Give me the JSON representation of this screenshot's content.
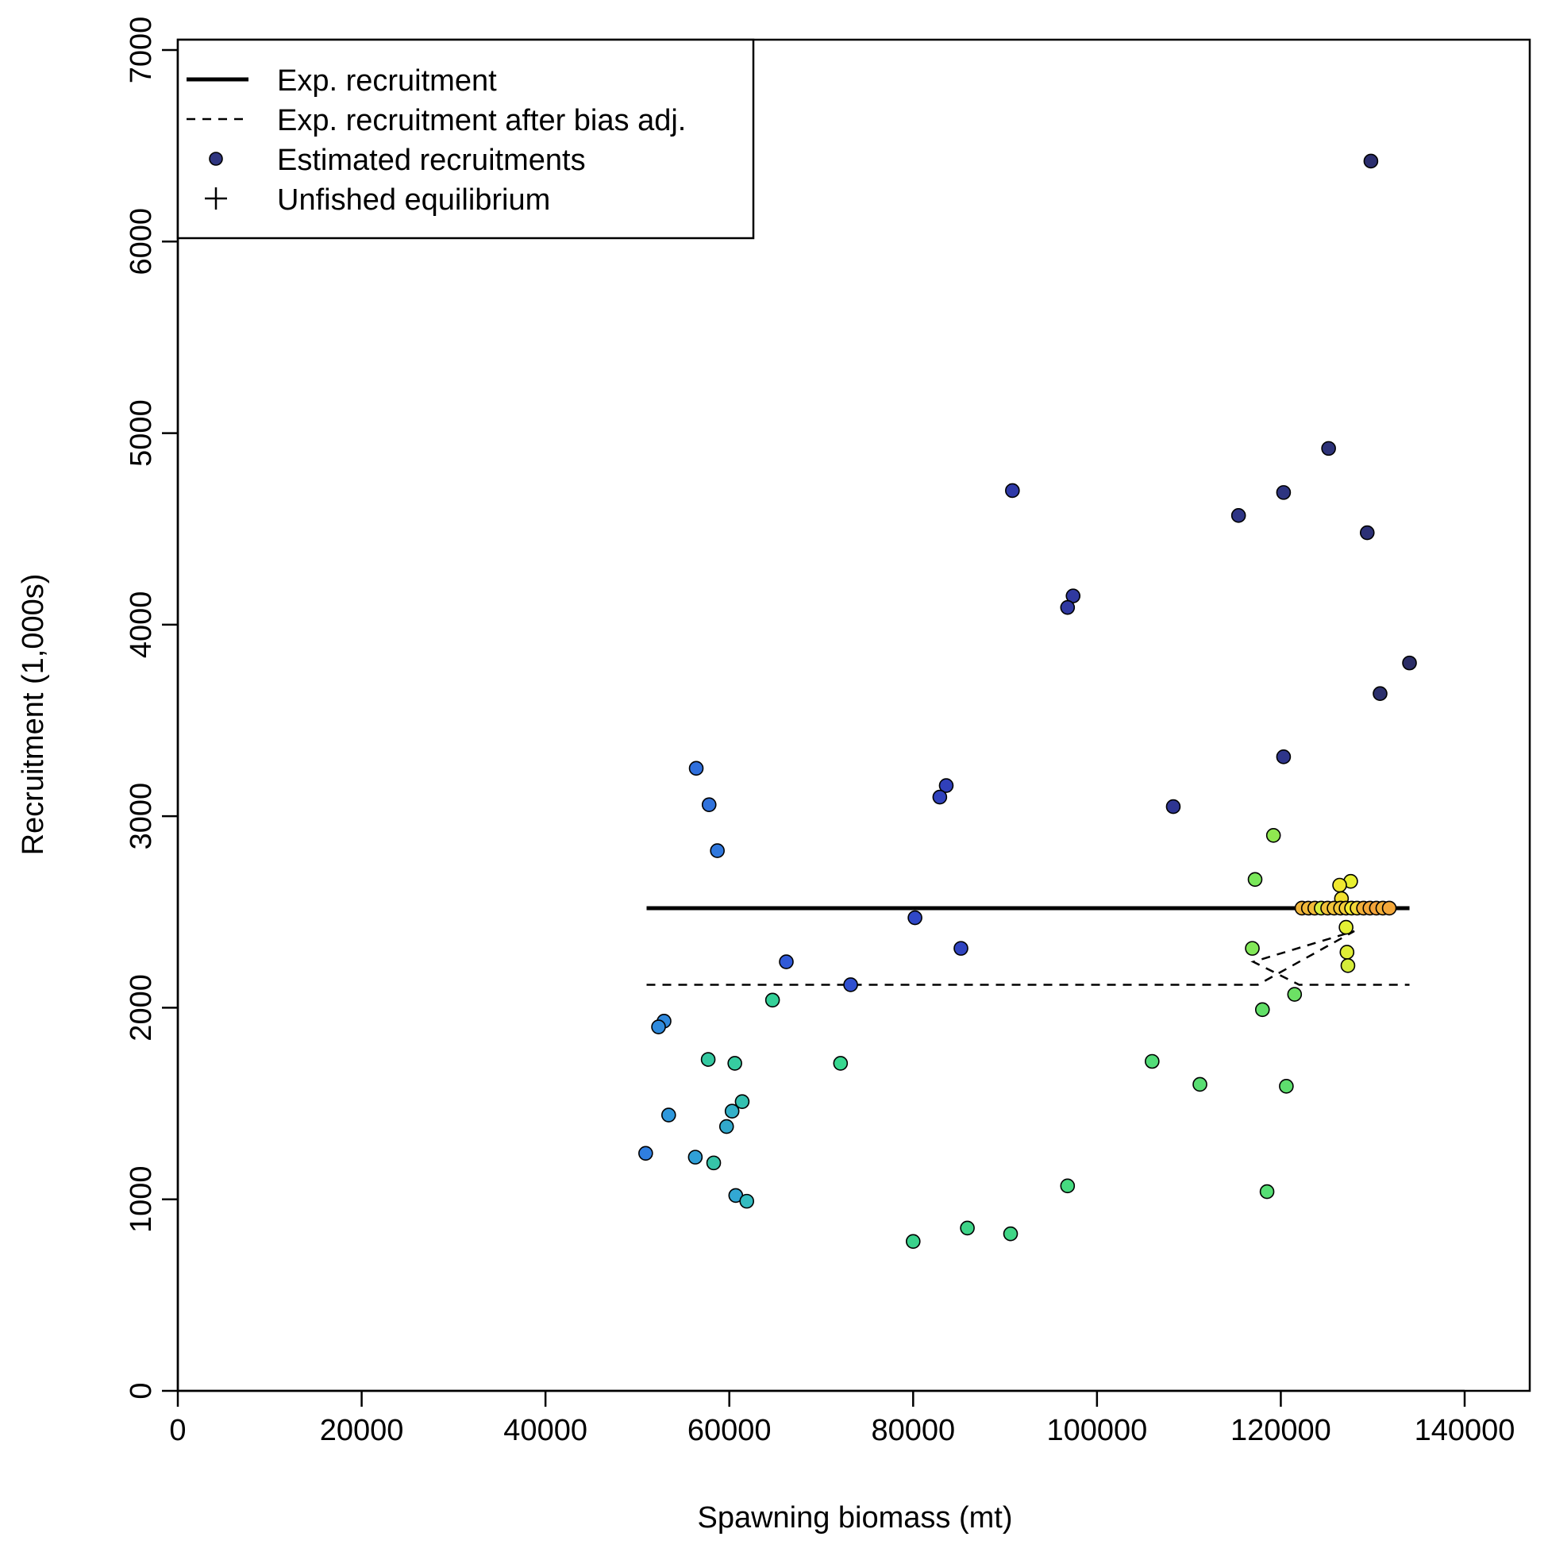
{
  "chart_data": {
    "type": "scatter",
    "xlabel": "Spawning biomass (mt)",
    "ylabel": "Recruitment (1,000s)",
    "xlim": [
      0,
      147000
    ],
    "ylim": [
      0,
      7200
    ],
    "x_ticks": [
      0,
      20000,
      40000,
      60000,
      80000,
      100000,
      120000,
      140000
    ],
    "x_tick_labels": [
      "0",
      "20000",
      "40000",
      "60000",
      "80000",
      "100000",
      "120000",
      "140000"
    ],
    "y_ticks": [
      0,
      1000,
      2000,
      3000,
      4000,
      5000,
      6000,
      7000
    ],
    "y_tick_labels": [
      "0",
      "1000",
      "2000",
      "3000",
      "4000",
      "5000",
      "6000",
      "7000"
    ],
    "grid": false,
    "legend": {
      "position": "top-left",
      "entries": [
        {
          "label": "Exp. recruitment",
          "symbol": "solid-line"
        },
        {
          "label": "Exp. recruitment after bias adj.",
          "symbol": "dashed-line"
        },
        {
          "label": "Estimated recruitments",
          "symbol": "point"
        },
        {
          "label": "Unfished equilibrium",
          "symbol": "plus"
        }
      ]
    },
    "lines": {
      "expected_recruitment": {
        "x": [
          51000,
          134000
        ],
        "y": [
          2520,
          2520
        ]
      },
      "bias_adjusted": {
        "x": [
          51000,
          117500,
          128000,
          117000,
          122000,
          134000
        ],
        "y": [
          2120,
          2120,
          2400,
          2240,
          2120,
          2120
        ]
      }
    },
    "colors": {
      "legend_point": "#2f3580",
      "line": "#000000"
    },
    "points": [
      {
        "x": 129800,
        "y": 6420,
        "color": "#2b2e6e"
      },
      {
        "x": 125200,
        "y": 4920,
        "color": "#2d3278"
      },
      {
        "x": 90800,
        "y": 4700,
        "color": "#2f3aa8"
      },
      {
        "x": 120300,
        "y": 4690,
        "color": "#2d3480"
      },
      {
        "x": 115400,
        "y": 4570,
        "color": "#2e3585"
      },
      {
        "x": 129400,
        "y": 4480,
        "color": "#2c3076"
      },
      {
        "x": 97400,
        "y": 4150,
        "color": "#3039a0"
      },
      {
        "x": 96800,
        "y": 4090,
        "color": "#3039a2"
      },
      {
        "x": 134000,
        "y": 3800,
        "color": "#2b2d66"
      },
      {
        "x": 130800,
        "y": 3640,
        "color": "#2b2f6c"
      },
      {
        "x": 120300,
        "y": 3310,
        "color": "#2e358a"
      },
      {
        "x": 56400,
        "y": 3250,
        "color": "#2f6fdc"
      },
      {
        "x": 83600,
        "y": 3160,
        "color": "#3040ba"
      },
      {
        "x": 82900,
        "y": 3100,
        "color": "#3042bd"
      },
      {
        "x": 57800,
        "y": 3060,
        "color": "#3072dc"
      },
      {
        "x": 108300,
        "y": 3050,
        "color": "#2e3592"
      },
      {
        "x": 58700,
        "y": 2820,
        "color": "#3078dd"
      },
      {
        "x": 119200,
        "y": 2900,
        "color": "#90e850"
      },
      {
        "x": 117200,
        "y": 2670,
        "color": "#7ae85a"
      },
      {
        "x": 127600,
        "y": 2660,
        "color": "#e8f030"
      },
      {
        "x": 126400,
        "y": 2640,
        "color": "#f0e830"
      },
      {
        "x": 126600,
        "y": 2570,
        "color": "#f2e030"
      },
      {
        "x": 122300,
        "y": 2520,
        "color": "#f0b43a"
      },
      {
        "x": 123000,
        "y": 2520,
        "color": "#f0b83a"
      },
      {
        "x": 123700,
        "y": 2520,
        "color": "#f2bc3a"
      },
      {
        "x": 124400,
        "y": 2520,
        "color": "#d8ee3c"
      },
      {
        "x": 125100,
        "y": 2520,
        "color": "#f0c03a"
      },
      {
        "x": 125800,
        "y": 2520,
        "color": "#f2c43a"
      },
      {
        "x": 126500,
        "y": 2520,
        "color": "#f2c83a"
      },
      {
        "x": 127100,
        "y": 2520,
        "color": "#f4d03a"
      },
      {
        "x": 127700,
        "y": 2520,
        "color": "#f2ec30"
      },
      {
        "x": 128300,
        "y": 2520,
        "color": "#f4d838"
      },
      {
        "x": 129000,
        "y": 2520,
        "color": "#f4b03a"
      },
      {
        "x": 129700,
        "y": 2520,
        "color": "#f4a83a"
      },
      {
        "x": 130400,
        "y": 2520,
        "color": "#f4a43a"
      },
      {
        "x": 131100,
        "y": 2520,
        "color": "#f4b03a"
      },
      {
        "x": 131800,
        "y": 2520,
        "color": "#f4a83a"
      },
      {
        "x": 80200,
        "y": 2470,
        "color": "#3048c8"
      },
      {
        "x": 127100,
        "y": 2420,
        "color": "#e4f034"
      },
      {
        "x": 85200,
        "y": 2310,
        "color": "#3044c0"
      },
      {
        "x": 116900,
        "y": 2310,
        "color": "#82e858"
      },
      {
        "x": 127200,
        "y": 2290,
        "color": "#e0ee36"
      },
      {
        "x": 66200,
        "y": 2240,
        "color": "#305ad8"
      },
      {
        "x": 127300,
        "y": 2220,
        "color": "#d4ec3a"
      },
      {
        "x": 73200,
        "y": 2120,
        "color": "#3050d0"
      },
      {
        "x": 121500,
        "y": 2070,
        "color": "#6ce064"
      },
      {
        "x": 64700,
        "y": 2040,
        "color": "#34d098"
      },
      {
        "x": 118000,
        "y": 1990,
        "color": "#62e068"
      },
      {
        "x": 52900,
        "y": 1930,
        "color": "#2f88dc"
      },
      {
        "x": 52300,
        "y": 1900,
        "color": "#2f8adc"
      },
      {
        "x": 57700,
        "y": 1730,
        "color": "#34c8a0"
      },
      {
        "x": 60600,
        "y": 1710,
        "color": "#36cca0"
      },
      {
        "x": 72100,
        "y": 1710,
        "color": "#38d890"
      },
      {
        "x": 106000,
        "y": 1720,
        "color": "#52dc78"
      },
      {
        "x": 111200,
        "y": 1600,
        "color": "#58de72"
      },
      {
        "x": 120600,
        "y": 1590,
        "color": "#5ede6e"
      },
      {
        "x": 61400,
        "y": 1510,
        "color": "#34c0b0"
      },
      {
        "x": 60300,
        "y": 1460,
        "color": "#33b0c8"
      },
      {
        "x": 53400,
        "y": 1440,
        "color": "#2f98dc"
      },
      {
        "x": 59700,
        "y": 1380,
        "color": "#32a8cc"
      },
      {
        "x": 50900,
        "y": 1240,
        "color": "#2f7ee0"
      },
      {
        "x": 56300,
        "y": 1220,
        "color": "#30a0d8"
      },
      {
        "x": 58300,
        "y": 1190,
        "color": "#36c4a8"
      },
      {
        "x": 96800,
        "y": 1070,
        "color": "#46da80"
      },
      {
        "x": 118500,
        "y": 1040,
        "color": "#56de74"
      },
      {
        "x": 60700,
        "y": 1020,
        "color": "#32a8d4"
      },
      {
        "x": 61900,
        "y": 990,
        "color": "#34bcc0"
      },
      {
        "x": 85900,
        "y": 850,
        "color": "#3ed488"
      },
      {
        "x": 90600,
        "y": 820,
        "color": "#40d686"
      },
      {
        "x": 80000,
        "y": 780,
        "color": "#3ad28c"
      }
    ]
  }
}
